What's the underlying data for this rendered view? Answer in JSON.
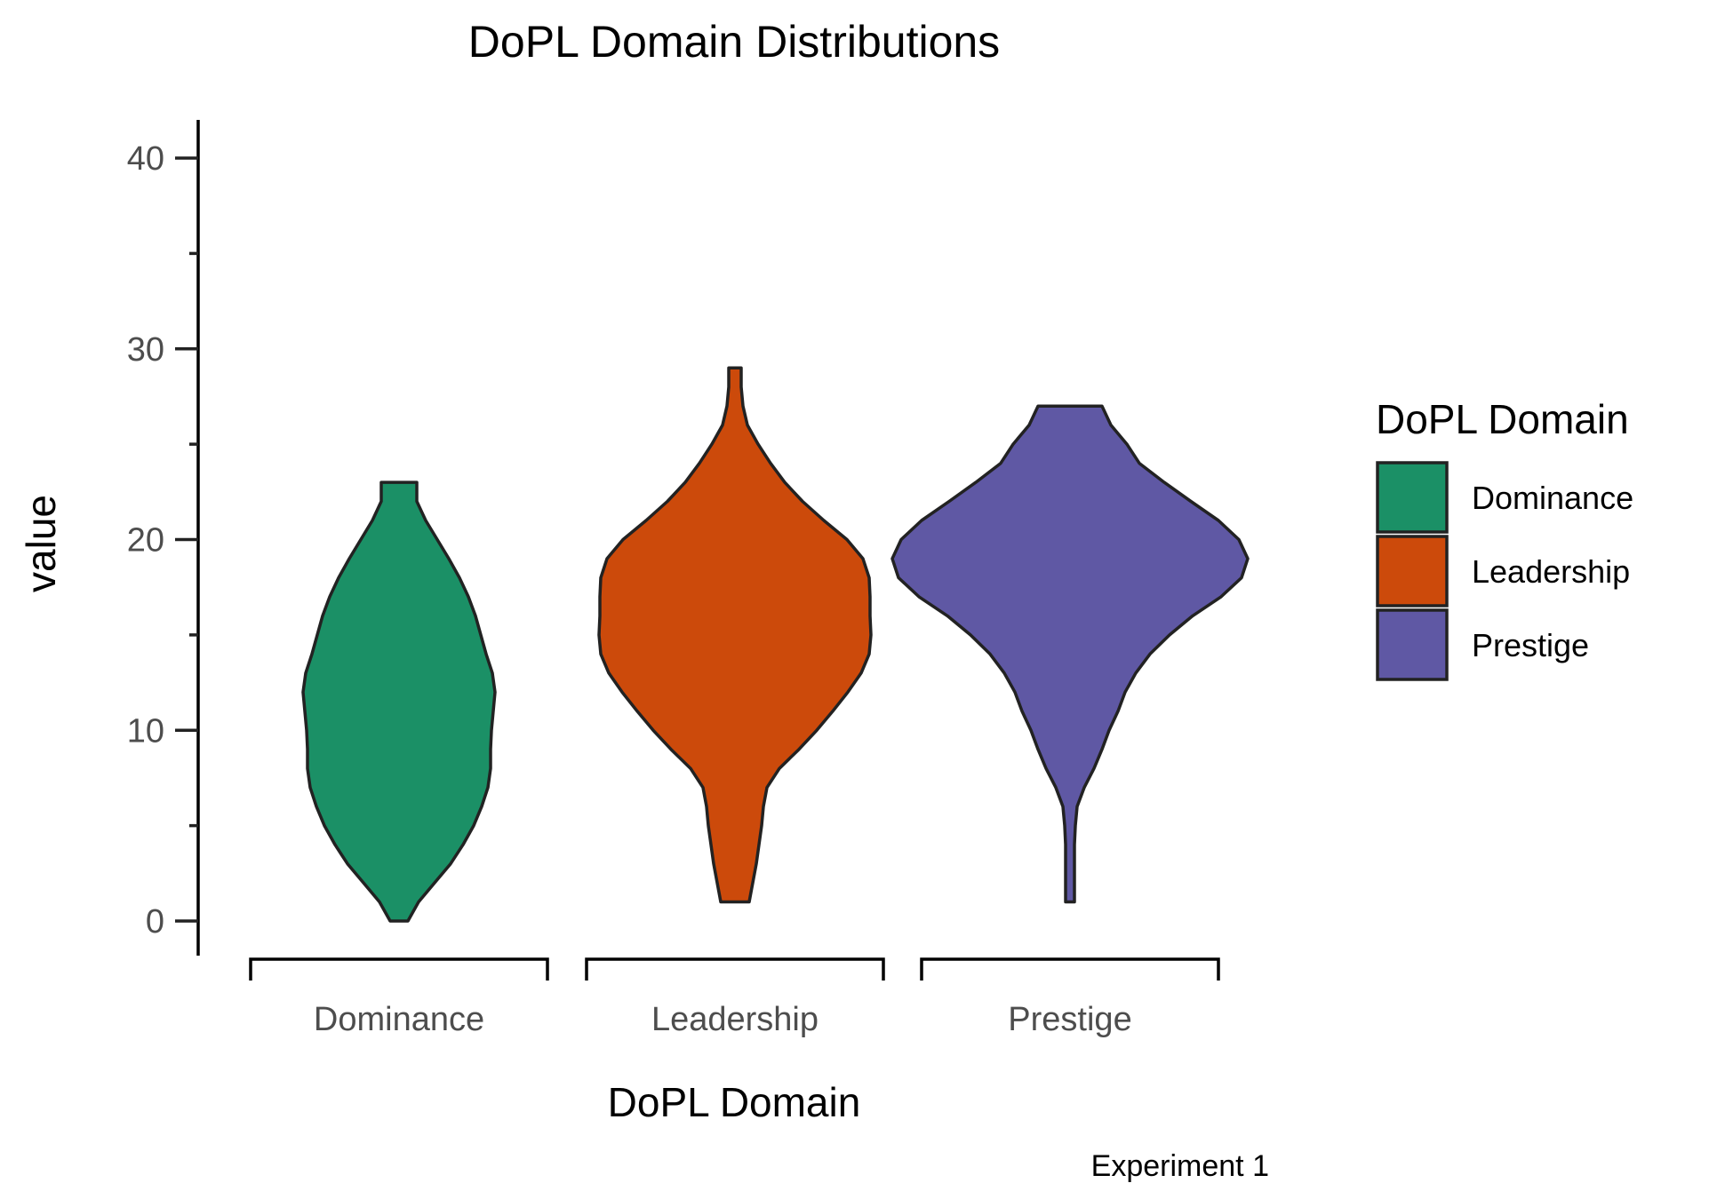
{
  "chart_data": {
    "type": "violin",
    "title": "DoPL Domain Distributions",
    "xlabel": "DoPL Domain",
    "ylabel": "value",
    "caption": "Experiment 1",
    "categories": [
      "Dominance",
      "Leadership",
      "Prestige"
    ],
    "ylim": [
      -2,
      42
    ],
    "y_ticks": [
      "0",
      "10",
      "20",
      "30",
      "40"
    ],
    "y_tick_values": [
      0,
      10,
      20,
      30,
      40
    ],
    "y_minor_tick_values": [
      5,
      15,
      25,
      35
    ],
    "legend": {
      "title": "DoPL Domain",
      "position": "right"
    },
    "grid": false,
    "series": [
      {
        "name": "Dominance",
        "color": "#1b9066",
        "min": 0,
        "max": 23,
        "density": [
          [
            0,
            0.1
          ],
          [
            1,
            0.22
          ],
          [
            2,
            0.4
          ],
          [
            3,
            0.58
          ],
          [
            4,
            0.72
          ],
          [
            5,
            0.84
          ],
          [
            6,
            0.93
          ],
          [
            7,
            1.0
          ],
          [
            8,
            1.03
          ],
          [
            9,
            1.03
          ],
          [
            10,
            1.04
          ],
          [
            11,
            1.06
          ],
          [
            12,
            1.08
          ],
          [
            13,
            1.05
          ],
          [
            14,
            0.98
          ],
          [
            15,
            0.92
          ],
          [
            16,
            0.86
          ],
          [
            17,
            0.78
          ],
          [
            18,
            0.68
          ],
          [
            19,
            0.56
          ],
          [
            20,
            0.43
          ],
          [
            21,
            0.3
          ],
          [
            22,
            0.2
          ],
          [
            23,
            0.2
          ]
        ]
      },
      {
        "name": "Leadership",
        "color": "#cc4a0b",
        "min": 1,
        "max": 29,
        "density": [
          [
            1,
            0.16
          ],
          [
            2,
            0.2
          ],
          [
            3,
            0.24
          ],
          [
            4,
            0.27
          ],
          [
            5,
            0.3
          ],
          [
            6,
            0.32
          ],
          [
            7,
            0.36
          ],
          [
            8,
            0.5
          ],
          [
            9,
            0.72
          ],
          [
            10,
            0.92
          ],
          [
            11,
            1.1
          ],
          [
            12,
            1.27
          ],
          [
            13,
            1.42
          ],
          [
            14,
            1.51
          ],
          [
            15,
            1.53
          ],
          [
            16,
            1.52
          ],
          [
            17,
            1.52
          ],
          [
            18,
            1.51
          ],
          [
            19,
            1.44
          ],
          [
            20,
            1.26
          ],
          [
            21,
            1.0
          ],
          [
            22,
            0.76
          ],
          [
            23,
            0.56
          ],
          [
            24,
            0.4
          ],
          [
            25,
            0.26
          ],
          [
            26,
            0.14
          ],
          [
            27,
            0.09
          ],
          [
            28,
            0.07
          ],
          [
            29,
            0.07
          ]
        ]
      },
      {
        "name": "Prestige",
        "color": "#5f58a4",
        "min": 1,
        "max": 27,
        "density": [
          [
            1,
            0.05
          ],
          [
            2,
            0.05
          ],
          [
            3,
            0.05
          ],
          [
            4,
            0.05
          ],
          [
            5,
            0.06
          ],
          [
            6,
            0.08
          ],
          [
            7,
            0.16
          ],
          [
            8,
            0.27
          ],
          [
            9,
            0.36
          ],
          [
            10,
            0.44
          ],
          [
            11,
            0.54
          ],
          [
            12,
            0.62
          ],
          [
            13,
            0.74
          ],
          [
            14,
            0.9
          ],
          [
            15,
            1.12
          ],
          [
            16,
            1.38
          ],
          [
            17,
            1.7
          ],
          [
            18,
            1.93
          ],
          [
            19,
            2.0
          ],
          [
            20,
            1.9
          ],
          [
            21,
            1.67
          ],
          [
            22,
            1.36
          ],
          [
            23,
            1.06
          ],
          [
            24,
            0.78
          ],
          [
            25,
            0.64
          ],
          [
            26,
            0.46
          ],
          [
            27,
            0.36
          ]
        ]
      }
    ]
  }
}
